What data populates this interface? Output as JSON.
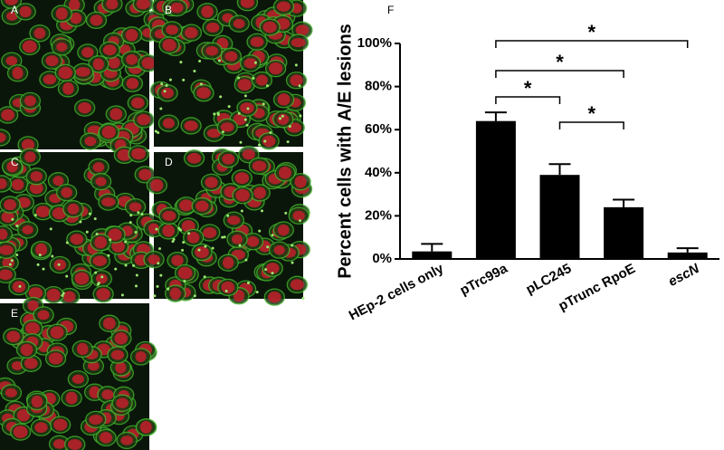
{
  "panels": [
    "A",
    "B",
    "C",
    "D",
    "E"
  ],
  "chart_data": {
    "type": "bar",
    "panel_label": "F",
    "ylabel": "Percent cells with A/E lesions",
    "categories": [
      "HEp-2 cells only",
      "pTrc99a",
      "pLC245",
      "pTrunc RpoE",
      "escN"
    ],
    "values": [
      3.5,
      64,
      39,
      24,
      3
    ],
    "errors": [
      3.5,
      4,
      5,
      3.5,
      2
    ],
    "color": "#000000",
    "ylim": [
      0,
      100
    ],
    "yticks": [
      {
        "value": 0,
        "label": "0%"
      },
      {
        "value": 20,
        "label": "20%"
      },
      {
        "value": 40,
        "label": "40%"
      },
      {
        "value": 60,
        "label": "60%"
      },
      {
        "value": 80,
        "label": "80%"
      },
      {
        "value": 100,
        "label": "100%"
      }
    ],
    "comparisons": [
      {
        "from": 1,
        "to": 4,
        "label": "*"
      },
      {
        "from": 1,
        "to": 3,
        "label": "*"
      },
      {
        "from": 1,
        "to": 2,
        "label": "*"
      },
      {
        "from": 2,
        "to": 3,
        "label": "*"
      }
    ],
    "italic_categories": [
      4
    ]
  }
}
